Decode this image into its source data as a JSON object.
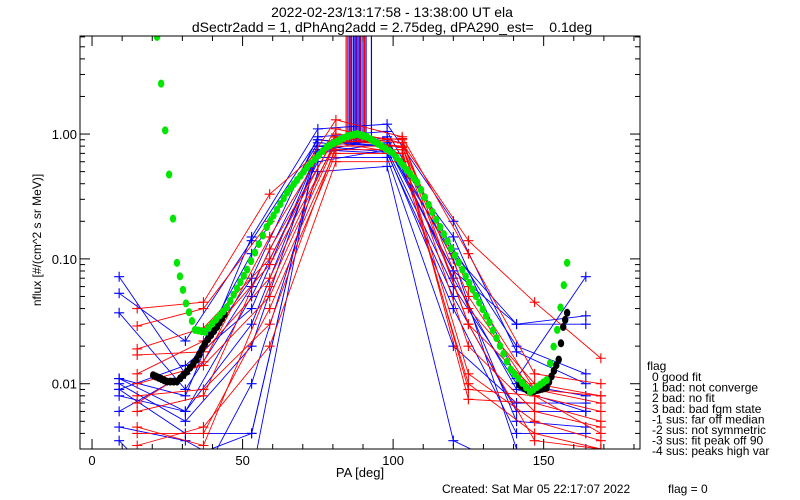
{
  "chart_data": {
    "type": "line",
    "title": "2022-02-23/13:17:58 - 13:38:00 UT ela",
    "subtitle": "dSectr2add = 1, dPhAng2add = 2.75deg, dPA290_est=    0.1deg",
    "xlabel": "PA [deg]",
    "ylabel": "nflux [#/(cm^2 s sr MeV)]",
    "xlim": [
      -4,
      182
    ],
    "ylim": [
      0.003,
      6.1
    ],
    "yscale": "log",
    "x_ticks": [
      0,
      50,
      100,
      150
    ],
    "x_tick_labels": [
      "0",
      "50",
      "100",
      "150"
    ],
    "y_ticks": [
      1.0,
      0.1,
      0.01
    ],
    "y_tick_labels": [
      "1.00",
      "0.10",
      "0.01"
    ],
    "colors": {
      "blue": "#0000ff",
      "red": "#ff0000",
      "fit": "#00e600",
      "fit_bad": "#000000"
    },
    "blue_pa": [
      9,
      31,
      53,
      75,
      98,
      120,
      141,
      164
    ],
    "red_pa": [
      15,
      37,
      59,
      81,
      103,
      125,
      147,
      169
    ],
    "blue_series": [
      [
        0.072,
        0.012,
        0.11,
        0.85,
        0.8,
        0.15,
        0.011,
        0.072
      ],
      [
        0.053,
        0.022,
        0.14,
        0.9,
        0.78,
        0.11,
        0.03,
        0.035
      ],
      [
        0.037,
        0.009,
        0.06,
        0.7,
        0.85,
        0.08,
        0.03,
        0.03
      ],
      [
        0.011,
        0.006,
        0.05,
        0.6,
        0.75,
        0.06,
        0.01,
        0.008
      ],
      [
        0.01,
        0.005,
        0.02,
        0.75,
        0.7,
        0.05,
        0.006,
        0.006
      ],
      [
        0.009,
        0.004,
        0.004,
        0.8,
        0.72,
        0.04,
        0.004,
        0.004
      ],
      [
        0.008,
        0.006,
        0.03,
        0.65,
        0.65,
        0.02,
        0.007,
        0.007
      ],
      [
        0.006,
        0.012,
        0.07,
        0.95,
        1.05,
        0.12,
        0.02,
        0.012
      ],
      [
        0.0045,
        0.0035,
        0.0018,
        0.9,
        0.8,
        0.08,
        0.005,
        0.0045
      ],
      [
        0.0035,
        0.001,
        0.01,
        0.5,
        0.55,
        0.0035,
        0.002,
        0.002
      ],
      [
        0.011,
        0.008,
        0.15,
        1.1,
        1.2,
        0.2,
        0.018,
        0.01
      ],
      [
        0.002,
        0.0025,
        0.004,
        0.8,
        0.9,
        0.1,
        0.003,
        0.003
      ],
      [
        0.009,
        0.014,
        0.04,
        0.72,
        0.95,
        0.07,
        0.009,
        0.006
      ]
    ],
    "red_series": [
      [
        0.04,
        0.045,
        0.33,
        0.95,
        0.85,
        0.14,
        0.045,
        0.016
      ],
      [
        0.029,
        0.04,
        0.2,
        1.3,
        0.95,
        0.11,
        0.012,
        0.01
      ],
      [
        0.019,
        0.028,
        0.1,
        1.0,
        0.9,
        0.04,
        0.01,
        0.008
      ],
      [
        0.017,
        0.018,
        0.07,
        0.9,
        0.8,
        0.03,
        0.009,
        0.007
      ],
      [
        0.012,
        0.022,
        0.09,
        0.85,
        0.7,
        0.009,
        0.008,
        0.006
      ],
      [
        0.01,
        0.014,
        0.05,
        0.75,
        0.75,
        0.0075,
        0.007,
        0.005
      ],
      [
        0.008,
        0.009,
        0.03,
        0.8,
        0.8,
        0.02,
        0.006,
        0.0045
      ],
      [
        0.007,
        0.015,
        0.15,
        1.1,
        0.85,
        0.05,
        0.008,
        0.004
      ],
      [
        0.004,
        0.004,
        0.04,
        0.7,
        0.7,
        0.012,
        0.005,
        0.0035
      ],
      [
        0.0032,
        0.0045,
        0.02,
        0.6,
        0.6,
        0.01,
        0.004,
        0.003
      ],
      [
        0.006,
        0.008,
        0.12,
        0.95,
        0.78,
        0.06,
        0.009,
        0.008
      ],
      [
        0.0045,
        0.0032,
        0.06,
        0.85,
        0.92,
        0.03,
        0.0035,
        0.003
      ]
    ],
    "spikes_blue_pa": [
      85,
      85.6,
      86.2,
      86.8,
      87.3,
      87.8,
      88.3,
      88.8,
      89.3,
      90,
      91,
      92.8
    ],
    "spikes_red_pa": [
      84.4,
      86,
      87.6,
      89,
      90.5
    ],
    "spike_range": [
      0.85,
      10
    ],
    "fit_curve": {
      "x": [
        21.6,
        24.3,
        28.2,
        31.2,
        34.2,
        37.5,
        44.8,
        51.5,
        58,
        64.8,
        71.4,
        78,
        84.7,
        88,
        91.3,
        100,
        108,
        115.6,
        123,
        132,
        139,
        145.5,
        151,
        154.5,
        157.8
      ],
      "y": [
        6.0,
        1.07,
        0.093,
        0.044,
        0.027,
        0.026,
        0.041,
        0.082,
        0.18,
        0.34,
        0.54,
        0.79,
        0.96,
        1.0,
        0.95,
        0.7,
        0.41,
        0.18,
        0.082,
        0.031,
        0.013,
        0.0086,
        0.0107,
        0.027,
        0.093
      ]
    },
    "fit_bad_left": {
      "x": [
        20.3,
        24.9,
        28.2,
        31.5,
        34.7,
        37.5,
        41.5,
        44
      ],
      "y": [
        0.0117,
        0.0104,
        0.0104,
        0.0125,
        0.0156,
        0.021,
        0.0285,
        0.036
      ]
    },
    "fit_bad_right": {
      "x": [
        142,
        145.5,
        151,
        155,
        156.5,
        157.8
      ],
      "y": [
        0.0098,
        0.0086,
        0.0093,
        0.0156,
        0.0285,
        0.037
      ]
    },
    "legend": {
      "title": "flag",
      "entries": [
        " 0 good fit",
        " 1 bad: not converge",
        " 2 bad: no fit",
        " 3 bad: bad fgm state",
        "-1 sus: far off median",
        "-2 sus: not symmetric",
        "-3 sus: fit peak off 90",
        "-4 sus: peaks high var"
      ]
    },
    "footer": {
      "created": "Created: Sat Mar 05 22:17:07 2022",
      "flag": "flag = 0"
    }
  }
}
